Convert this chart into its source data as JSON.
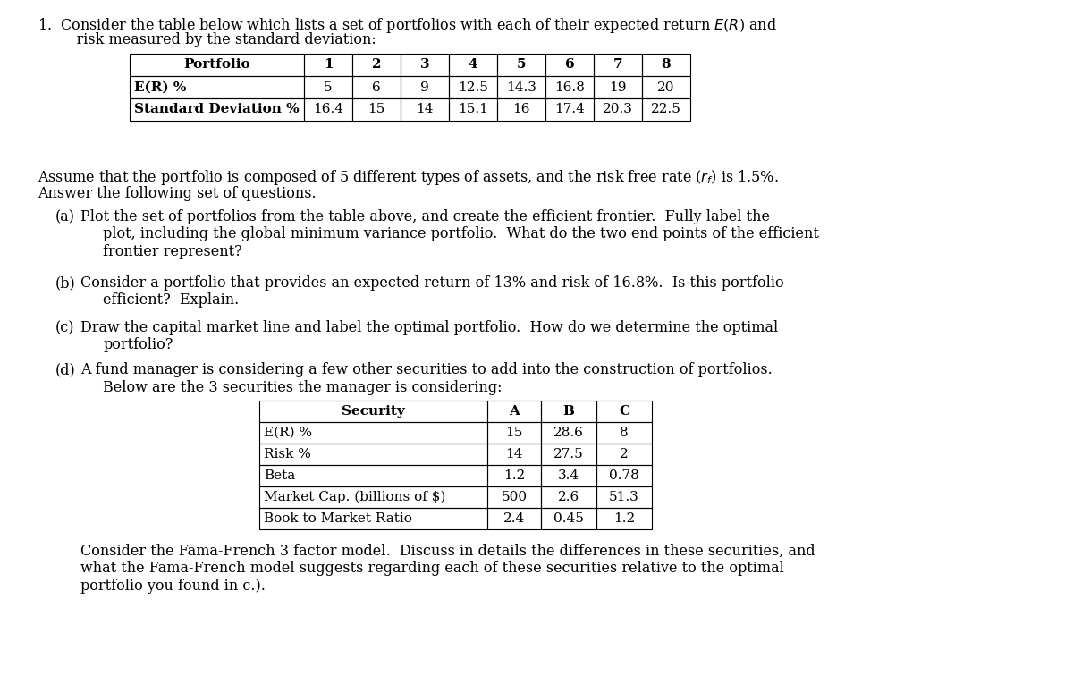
{
  "bg_color": "#ffffff",
  "font_family": "DejaVu Serif",
  "table1_headers": [
    "Portfolio",
    "1",
    "2",
    "3",
    "4",
    "5",
    "6",
    "7",
    "8"
  ],
  "table1_row1": [
    "E(R) %",
    "5",
    "6",
    "9",
    "12.5",
    "14.3",
    "16.8",
    "19",
    "20"
  ],
  "table1_row2": [
    "Standard Deviation %",
    "16.4",
    "15",
    "14",
    "15.1",
    "16",
    "17.4",
    "20.3",
    "22.5"
  ],
  "table2_headers": [
    "Security",
    "A",
    "B",
    "C"
  ],
  "table2_rows": [
    [
      "E(R) %",
      "15",
      "28.6",
      "8"
    ],
    [
      "Risk %",
      "14",
      "27.5",
      "2"
    ],
    [
      "Beta",
      "1.2",
      "3.4",
      "0.78"
    ],
    [
      "Market Cap. (billions of $)",
      "500",
      "2.6",
      "51.3"
    ],
    [
      "Book to Market Ratio",
      "2.4",
      "0.45",
      "1.2"
    ]
  ],
  "line1": "1.  Consider the table below which lists a set of portfolios with each of their expected return $E(R)$ and",
  "line2": "    risk measured by the standard deviation:",
  "assume1": "Assume that the portfolio is composed of 5 different types of assets, and the risk free rate ($r_f$) is 1.5%.",
  "assume2": "Answer the following set of questions.",
  "qa_a_label": "(a)",
  "qa_a_lines": [
    "Plot the set of portfolios from the table above, and create the efficient frontier.  Fully label the",
    "plot, including the global minimum variance portfolio.  What do the two end points of the efficient",
    "frontier represent?"
  ],
  "qa_b_label": "(b)",
  "qa_b_lines": [
    "Consider a portfolio that provides an expected return of 13% and risk of 16.8%.  Is this portfolio",
    "efficient?  Explain."
  ],
  "qa_c_label": "(c)",
  "qa_c_lines": [
    "Draw the capital market line and label the optimal portfolio.  How do we determine the optimal",
    "portfolio?"
  ],
  "qa_d_label": "(d)",
  "qa_d_lines": [
    "A fund manager is considering a few other securities to add into the construction of portfolios.",
    "Below are the 3 securities the manager is considering:"
  ],
  "final_lines": [
    "Consider the Fama-French 3 factor model.  Discuss in details the differences in these securities, and",
    "what the Fama-French model suggests regarding each of these securities relative to the optimal",
    "portfolio you found in c.)."
  ],
  "fs_body": 11.5,
  "fs_table": 11.0
}
